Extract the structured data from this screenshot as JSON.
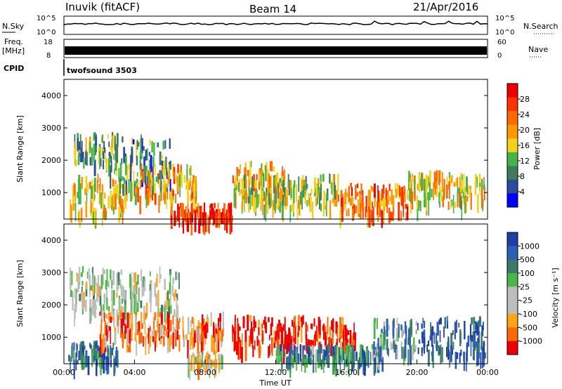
{
  "header": {
    "station": "Inuvik (fitACF)",
    "beam": "Beam 14",
    "date": "21/Apr/2016"
  },
  "status_panels": {
    "nsky_label": "N.Sky",
    "nsky_ticks": [
      "10^5",
      "10^0"
    ],
    "nsearch_label": "N.Search",
    "nsearch_ticks": [
      "10^5",
      "10^0"
    ],
    "freq_label_1": "Freq.",
    "freq_label_2": "[MHz]",
    "freq_ticks": [
      "18",
      "8"
    ],
    "nave_label": "Nave",
    "nave_ticks": [
      "60",
      "0"
    ],
    "cpid_label": "CPID",
    "cpid_value": "twofsound 3503"
  },
  "colors": {
    "power": [
      "#0000ff",
      "#2e4a9e",
      "#3d7d5c",
      "#45b54a",
      "#f2d21a",
      "#ff9900",
      "#ff6a00",
      "#ff3300",
      "#ee0000"
    ],
    "velocity": [
      "#1f3fa6",
      "#2e5fb5",
      "#3a7a6a",
      "#4bb548",
      "#bdbdbd",
      "#bdbdbd",
      "#ffa31a",
      "#ff6a00",
      "#ee0000"
    ],
    "frame": "#000000"
  },
  "chart_data": [
    {
      "type": "heatmap",
      "title": "",
      "xlabel": "",
      "ylabel": "Slant Range [km]",
      "xlim_hours": [
        0,
        24
      ],
      "ylim": [
        180,
        4500
      ],
      "y_ticks": [
        "1000",
        "2000",
        "3000",
        "4000"
      ],
      "colorbar_label": "Power [dB]",
      "colorbar_ticks": [
        "4",
        "8",
        "12",
        "16",
        "20",
        "24",
        "28"
      ],
      "scatter_regions": [
        {
          "t_start": 0.3,
          "t_end": 3.5,
          "r_low": 400,
          "r_high": 1600,
          "level": 0.55
        },
        {
          "t_start": 0.5,
          "t_end": 3.0,
          "r_low": 2000,
          "r_high": 2900,
          "level": 0.35
        },
        {
          "t_start": 2.5,
          "t_end": 6.0,
          "r_low": 1200,
          "r_high": 2800,
          "level": 0.3
        },
        {
          "t_start": 4.0,
          "t_end": 7.5,
          "r_low": 900,
          "r_high": 1900,
          "level": 0.6
        },
        {
          "t_start": 6.0,
          "t_end": 9.5,
          "r_low": 250,
          "r_high": 700,
          "level": 0.85
        },
        {
          "t_start": 9.5,
          "t_end": 12.5,
          "r_low": 900,
          "r_high": 2000,
          "level": 0.6
        },
        {
          "t_start": 10.0,
          "t_end": 15.5,
          "r_low": 600,
          "r_high": 1600,
          "level": 0.45
        },
        {
          "t_start": 15.5,
          "t_end": 19.5,
          "r_low": 400,
          "r_high": 1300,
          "level": 0.7
        },
        {
          "t_start": 19.5,
          "t_end": 23.8,
          "r_low": 700,
          "r_high": 1700,
          "level": 0.55
        }
      ]
    },
    {
      "type": "heatmap",
      "title": "",
      "xlabel": "Time UT",
      "ylabel": "Slant Range [km]",
      "xlim_hours": [
        0,
        24
      ],
      "ylim": [
        180,
        4500
      ],
      "x_ticks": [
        "00:00",
        "04:00",
        "08:00",
        "12:00",
        "16:00",
        "20:00",
        "00:00"
      ],
      "y_ticks": [
        "1000",
        "2000",
        "3000",
        "4000"
      ],
      "colorbar_label": "Velocity [m s⁻¹]",
      "colorbar_ticks": [
        "1000",
        "500",
        "100",
        "25",
        "-25",
        "-100",
        "-500",
        "-1000"
      ],
      "scatter_regions": [
        {
          "t_start": 0.2,
          "t_end": 3.0,
          "r_low": 300,
          "r_high": 900,
          "level": 0.2
        },
        {
          "t_start": 0.3,
          "t_end": 6.5,
          "r_low": 1800,
          "r_high": 3200,
          "level": 0.5
        },
        {
          "t_start": 2.0,
          "t_end": 9.0,
          "r_low": 900,
          "r_high": 1800,
          "level": 0.8
        },
        {
          "t_start": 7.0,
          "t_end": 9.0,
          "r_low": 250,
          "r_high": 600,
          "level": 0.6
        },
        {
          "t_start": 9.5,
          "t_end": 16.5,
          "r_low": 700,
          "r_high": 1700,
          "level": 0.95
        },
        {
          "t_start": 12.0,
          "t_end": 18.0,
          "r_low": 300,
          "r_high": 800,
          "level": 0.25
        },
        {
          "t_start": 17.5,
          "t_end": 20.0,
          "r_low": 600,
          "r_high": 1600,
          "level": 0.35
        },
        {
          "t_start": 20.0,
          "t_end": 23.8,
          "r_low": 500,
          "r_high": 1700,
          "level": 0.1
        }
      ]
    }
  ]
}
